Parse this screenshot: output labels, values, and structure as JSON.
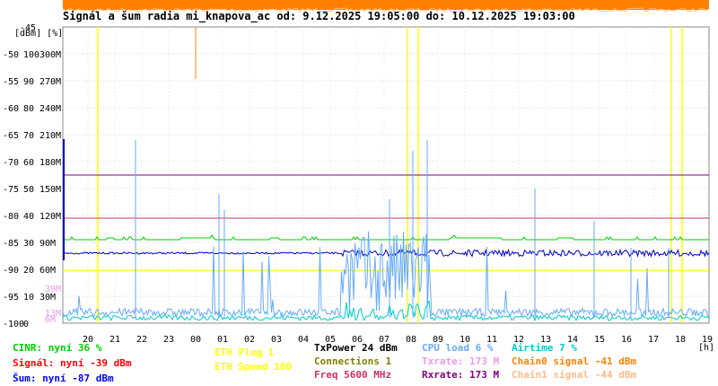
{
  "title": "Signál a šum radia mi_knapova_ac od: 9.12.2025 19:05:00 do: 10.12.2025 19:03:00",
  "chart_data": {
    "type": "line",
    "title": "Signál a šum radia mi_knapova_ac od: 9.12.2025 19:05:00 do: 10.12.2025 19:03:00",
    "y_units_label": "[dBm] [%]",
    "y_ticks_dbm": [
      "-45",
      "-50",
      "-55",
      "-60",
      "-65",
      "-70",
      "-75",
      "-80",
      "-85",
      "-90",
      "-95",
      "-100"
    ],
    "y_ticks_pct": [
      "100",
      "90",
      "80",
      "70",
      "60",
      "50",
      "40",
      "30",
      "20",
      "10",
      "0"
    ],
    "y_ticks_rate": [
      "300M",
      "270M",
      "240M",
      "210M",
      "180M",
      "150M",
      "120M",
      "90M",
      "60M",
      "30M"
    ],
    "y_ticks_rate_extra": [
      "39M",
      "13M",
      "6M"
    ],
    "x_ticks": [
      "20",
      "21",
      "22",
      "23",
      "00",
      "01",
      "02",
      "03",
      "04",
      "05",
      "06",
      "07",
      "08",
      "09",
      "10",
      "11",
      "12",
      "13",
      "14",
      "15",
      "16",
      "17",
      "18",
      "19"
    ],
    "x_unit": "[h]",
    "ylim_dbm": [
      -100,
      -45
    ],
    "series": [
      {
        "name": "CINR",
        "color": "#00cc00",
        "value_pct": 36
      },
      {
        "name": "Signál",
        "color": "#ff0000",
        "value_dbm": -39
      },
      {
        "name": "Šum",
        "color": "#0000ff",
        "value_dbm": -87
      },
      {
        "name": "ETH Plug",
        "color": "#ffff00",
        "value": 1
      },
      {
        "name": "ETH Speed",
        "color": "#ffff00",
        "value": 100
      },
      {
        "name": "TxPower",
        "color": "#000000",
        "value_dbm": 24
      },
      {
        "name": "Connections",
        "color": "#808000",
        "value": 1
      },
      {
        "name": "Freq",
        "color": "#cc3366",
        "value_mhz": 5600
      },
      {
        "name": "CPU load",
        "color": "#66aaff",
        "value_pct": 6
      },
      {
        "name": "Txrate",
        "color": "#ee99ee",
        "value_mbps": 173
      },
      {
        "name": "Rxrate",
        "color": "#800080",
        "value_mbps": 173
      },
      {
        "name": "Airtime",
        "color": "#00cccc",
        "value_pct": 7
      },
      {
        "name": "Chain0 signal",
        "color": "#ff8000",
        "value_dbm": -41
      },
      {
        "name": "Chain1 signal",
        "color": "#ffbb88",
        "value_dbm": -44
      }
    ],
    "levels_dbm": {
      "txrate_line": -72.5,
      "rxrate_line": -80.5,
      "cinr_line": -84.5,
      "noise_line": -87.0,
      "eth_line": -90.3
    },
    "grid": true
  },
  "legend": {
    "cinr": "CINR: nyní 36 %",
    "signal": "Signál: nyní -39 dBm",
    "noise": "Šum: nyní -87 dBm",
    "eth_plug": "ETH Plug 1",
    "eth_speed": "ETH Speed 100",
    "txpower": "TxPower 24 dBm",
    "connections": "Connections 1",
    "freq": "Freq 5600 MHz",
    "cpu": "CPU load 6 %",
    "txrate": "Txrate: 173 M",
    "rxrate": "Rxrate: 173 M",
    "airtime": "Airtime 7 %",
    "chain0": "Chain0 signal -41 dBm",
    "chain1": "Chain1 signal -44 dBm"
  }
}
